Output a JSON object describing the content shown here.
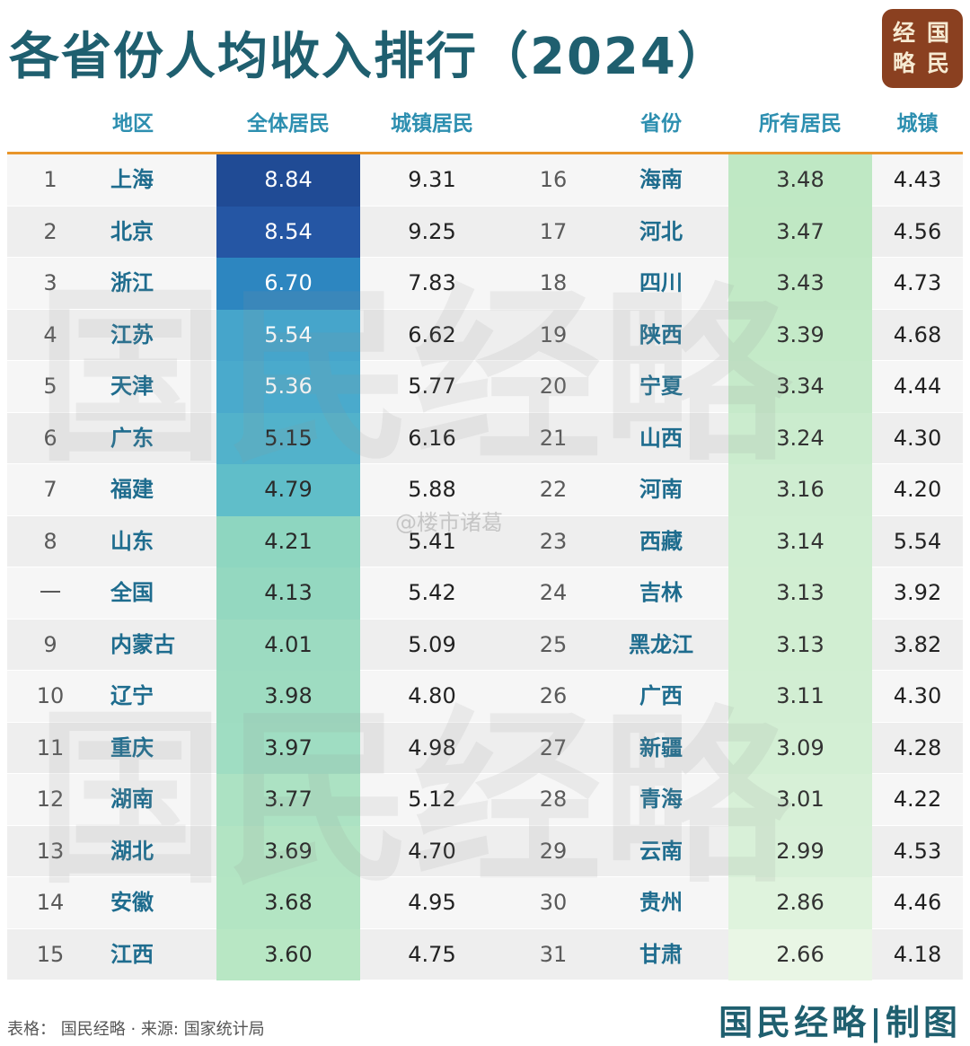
{
  "title": "各省份人均收入排行（2024）",
  "logo": {
    "chars": [
      "国",
      "民",
      "经",
      "略"
    ]
  },
  "headers": {
    "region": "地区",
    "all_residents": "全体居民",
    "urban_residents": "城镇居民",
    "province": "省份",
    "all_residents2": "所有居民",
    "urban2": "城镇"
  },
  "colors": {
    "accent_line": "#e8952a",
    "header_text": "#2d8fb0",
    "name_text": "#1e6c8e",
    "title_text": "#1f5f6f",
    "logo_bg": "#8a4020"
  },
  "chart_data": {
    "type": "table",
    "title": "各省份人均收入排行（2024）",
    "columns": [
      "地区",
      "全体居民",
      "城镇居民",
      "省份",
      "所有居民",
      "城镇"
    ],
    "left": [
      {
        "rank": "1",
        "name": "上海",
        "all": 8.84,
        "urban": 9.31
      },
      {
        "rank": "2",
        "name": "北京",
        "all": 8.54,
        "urban": 9.25
      },
      {
        "rank": "3",
        "name": "浙江",
        "all": 6.7,
        "urban": 7.83
      },
      {
        "rank": "4",
        "name": "江苏",
        "all": 5.54,
        "urban": 6.62
      },
      {
        "rank": "5",
        "name": "天津",
        "all": 5.36,
        "urban": 5.77
      },
      {
        "rank": "6",
        "name": "广东",
        "all": 5.15,
        "urban": 6.16
      },
      {
        "rank": "7",
        "name": "福建",
        "all": 4.79,
        "urban": 5.88
      },
      {
        "rank": "8",
        "name": "山东",
        "all": 4.21,
        "urban": 5.41
      },
      {
        "rank": "一",
        "name": "全国",
        "all": 4.13,
        "urban": 5.42
      },
      {
        "rank": "9",
        "name": "内蒙古",
        "all": 4.01,
        "urban": 5.09
      },
      {
        "rank": "10",
        "name": "辽宁",
        "all": 3.98,
        "urban": 4.8
      },
      {
        "rank": "11",
        "name": "重庆",
        "all": 3.97,
        "urban": 4.98
      },
      {
        "rank": "12",
        "name": "湖南",
        "all": 3.77,
        "urban": 5.12
      },
      {
        "rank": "13",
        "name": "湖北",
        "all": 3.69,
        "urban": 4.7
      },
      {
        "rank": "14",
        "name": "安徽",
        "all": 3.68,
        "urban": 4.95
      },
      {
        "rank": "15",
        "name": "江西",
        "all": 3.6,
        "urban": 4.75
      }
    ],
    "right": [
      {
        "rank": "16",
        "name": "海南",
        "all": 3.48,
        "urban": 4.43
      },
      {
        "rank": "17",
        "name": "河北",
        "all": 3.47,
        "urban": 4.56
      },
      {
        "rank": "18",
        "name": "四川",
        "all": 3.43,
        "urban": 4.73
      },
      {
        "rank": "19",
        "name": "陕西",
        "all": 3.39,
        "urban": 4.68
      },
      {
        "rank": "20",
        "name": "宁夏",
        "all": 3.34,
        "urban": 4.44
      },
      {
        "rank": "21",
        "name": "山西",
        "all": 3.24,
        "urban": 4.3
      },
      {
        "rank": "22",
        "name": "河南",
        "all": 3.16,
        "urban": 4.2
      },
      {
        "rank": "23",
        "name": "西藏",
        "all": 3.14,
        "urban": 5.54
      },
      {
        "rank": "24",
        "name": "吉林",
        "all": 3.13,
        "urban": 3.92
      },
      {
        "rank": "25",
        "name": "黑龙江",
        "all": 3.13,
        "urban": 3.82
      },
      {
        "rank": "26",
        "name": "广西",
        "all": 3.11,
        "urban": 4.3
      },
      {
        "rank": "27",
        "name": "新疆",
        "all": 3.09,
        "urban": 4.28
      },
      {
        "rank": "28",
        "name": "青海",
        "all": 3.01,
        "urban": 4.22
      },
      {
        "rank": "29",
        "name": "云南",
        "all": 2.99,
        "urban": 4.53
      },
      {
        "rank": "30",
        "name": "贵州",
        "all": 2.86,
        "urban": 4.46
      },
      {
        "rank": "31",
        "name": "甘肃",
        "all": 2.66,
        "urban": 4.18
      }
    ]
  },
  "watermark": {
    "text": "国民经略",
    "overlay": "@楼市诸葛"
  },
  "footer": {
    "left": "表格：  国民经略 · 来源: 国家统计局",
    "right": "国民经略|制图"
  }
}
